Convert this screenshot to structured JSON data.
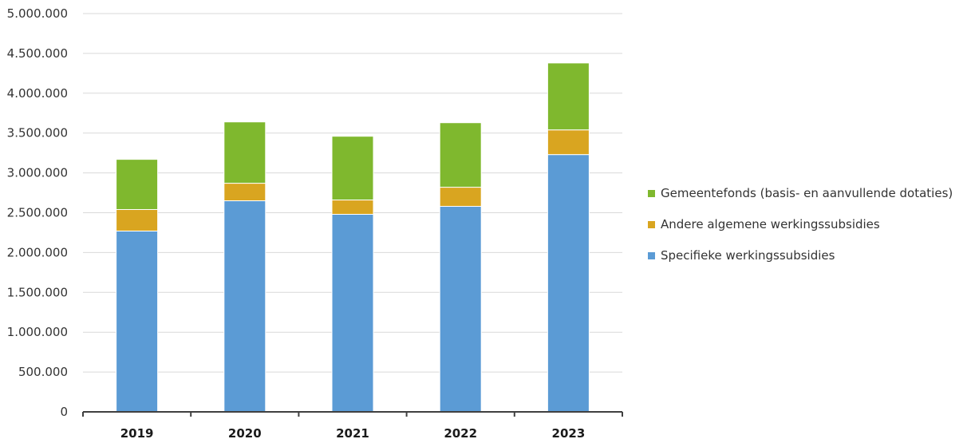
{
  "chart_data": {
    "type": "bar",
    "stacked": true,
    "categories": [
      "2019",
      "2020",
      "2021",
      "2022",
      "2023"
    ],
    "series": [
      {
        "name": "Specifieke werkingssubsidies",
        "color": "#5b9bd5",
        "values": [
          2270000,
          2650000,
          2480000,
          2580000,
          3230000
        ]
      },
      {
        "name": "Andere algemene werkingssubsidies",
        "color": "#d9a520",
        "values": [
          270000,
          220000,
          180000,
          240000,
          310000
        ]
      },
      {
        "name": "Gemeentefonds (basis- en aanvullende dotaties)",
        "color": "#7fb82e",
        "values": [
          630000,
          770000,
          800000,
          810000,
          840000
        ]
      }
    ],
    "title": "",
    "xlabel": "",
    "ylabel": "",
    "ylim": [
      0,
      5000000
    ],
    "yticks": [
      "0",
      "500.000",
      "1.000.000",
      "1.500.000",
      "2.000.000",
      "2.500.000",
      "3.000.000",
      "3.500.000",
      "4.000.000",
      "4.500.000",
      "5.000.000"
    ],
    "grid": true,
    "legend_position": "right"
  },
  "legend": [
    {
      "label": "Gemeentefonds (basis- en aanvullende dotaties)",
      "color": "#7fb82e"
    },
    {
      "label": "Andere algemene werkingssubsidies",
      "color": "#d9a520"
    },
    {
      "label": "Specifieke werkingssubsidies",
      "color": "#5b9bd5"
    }
  ]
}
